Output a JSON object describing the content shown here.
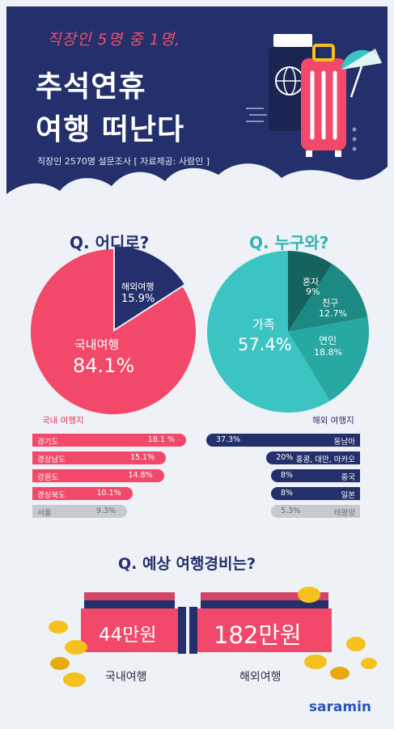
{
  "header": {
    "subtitle": "직장인 5명 중 1명,",
    "title_line1": "추석연휴",
    "title_line2": "여행 떠난다",
    "source": "직장인 2570명 설문조사 [ 자료제공: 사람인 ]"
  },
  "chart_data": [
    {
      "type": "pie",
      "title": "Q. 어디로?",
      "slices": [
        {
          "label": "국내여행",
          "value": 84.1,
          "display": "84.1%",
          "color": "#f24869"
        },
        {
          "label": "해외여행",
          "value": 15.9,
          "display": "15.9%",
          "color": "#24306b"
        }
      ]
    },
    {
      "type": "pie",
      "title": "Q. 누구와?",
      "slices": [
        {
          "label": "가족",
          "value": 57.4,
          "display": "57.4%",
          "color": "#3cc4c2"
        },
        {
          "label": "혼자",
          "value": 9,
          "display": "9%",
          "color": "#14635f"
        },
        {
          "label": "친구",
          "value": 12.7,
          "display": "12.7%",
          "color": "#1c8a82"
        },
        {
          "label": "연인",
          "value": 18.8,
          "display": "18.8%",
          "color": "#27a8a2"
        }
      ]
    },
    {
      "type": "bar",
      "title": "국내 여행지",
      "categories": [
        "경기도",
        "경상남도",
        "강원도",
        "경상북도",
        "서울"
      ],
      "values": [
        18.1,
        15.1,
        14.8,
        10.1,
        9.3
      ],
      "display": [
        "18.1 %",
        "15.1%",
        "14.8%",
        "10.1%",
        "9.3%"
      ],
      "colors": [
        "#f24869",
        "#f24869",
        "#f24869",
        "#f24869",
        "#c7c9ce"
      ]
    },
    {
      "type": "bar",
      "title": "해외 여행지",
      "categories": [
        "동남아",
        "홍콩, 대만, 마카오",
        "중국",
        "일본",
        "태평양"
      ],
      "values": [
        37.3,
        20,
        8,
        8,
        5.3
      ],
      "display": [
        "37.3%",
        "20%",
        "8%",
        "8%",
        "5.3%"
      ],
      "colors": [
        "#24306b",
        "#24306b",
        "#24306b",
        "#24306b",
        "#c7c9ce"
      ]
    }
  ],
  "cost": {
    "title": "Q. 예상 여행경비는?",
    "domestic_value": "44만원",
    "domestic_label": "국내여행",
    "overseas_value": "182만원",
    "overseas_label": "해외여행"
  },
  "brand": "saramin",
  "colors": {
    "navy": "#24306b",
    "pink": "#f24869",
    "teal": "#3cc4c2",
    "gray": "#c7c9ce",
    "gold": "#f5c11e"
  }
}
